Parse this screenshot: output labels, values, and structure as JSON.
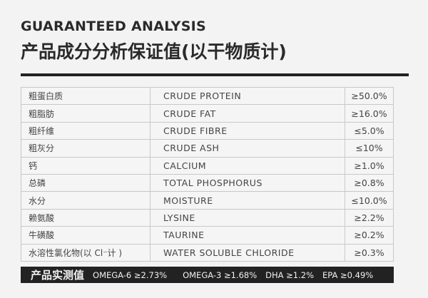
{
  "title_en": "GUARANTEED ANALYSIS",
  "title_cn": "产品成分分析保证值(以干物质计)",
  "rows": [
    {
      "cn": "粗蛋白质",
      "en": "CRUDE PROTEIN",
      "value": "≥50.0%"
    },
    {
      "cn": "粗脂肪",
      "en": "CRUDE FAT",
      "value": "≥16.0%"
    },
    {
      "cn": "粗纤维",
      "en": "CRUDE FIBRE",
      "value": "≤5.0%"
    },
    {
      "cn": "粗灰分",
      "en": "CRUDE ASH",
      "value": "≤10%"
    },
    {
      "cn": "钙",
      "en": "CALCIUM",
      "value": "≥1.0%"
    },
    {
      "cn": "总磷",
      "en": "TOTAL PHOSPHORUS",
      "value": "≥0.8%"
    },
    {
      "cn": "水分",
      "en": "MOISTURE",
      "value": "≤10.0%"
    },
    {
      "cn": "赖氨酸",
      "en": "LYSINE",
      "value": "≥2.2%"
    },
    {
      "cn": "牛磺酸",
      "en": "TAURINE",
      "value": "≥0.2%"
    },
    {
      "cn": "水溶性氯化物(以 Cl⁻计 )",
      "en": "WATER SOLUBLE CHLORIDE",
      "value": "≥0.3%"
    }
  ],
  "footer": {
    "label": "产品实测值",
    "values": [
      "OMEGA-6 ≥2.73%",
      "OMEGA-3 ≥1.68%",
      "DHA ≥1.2%",
      "EPA ≥0.49%"
    ]
  }
}
